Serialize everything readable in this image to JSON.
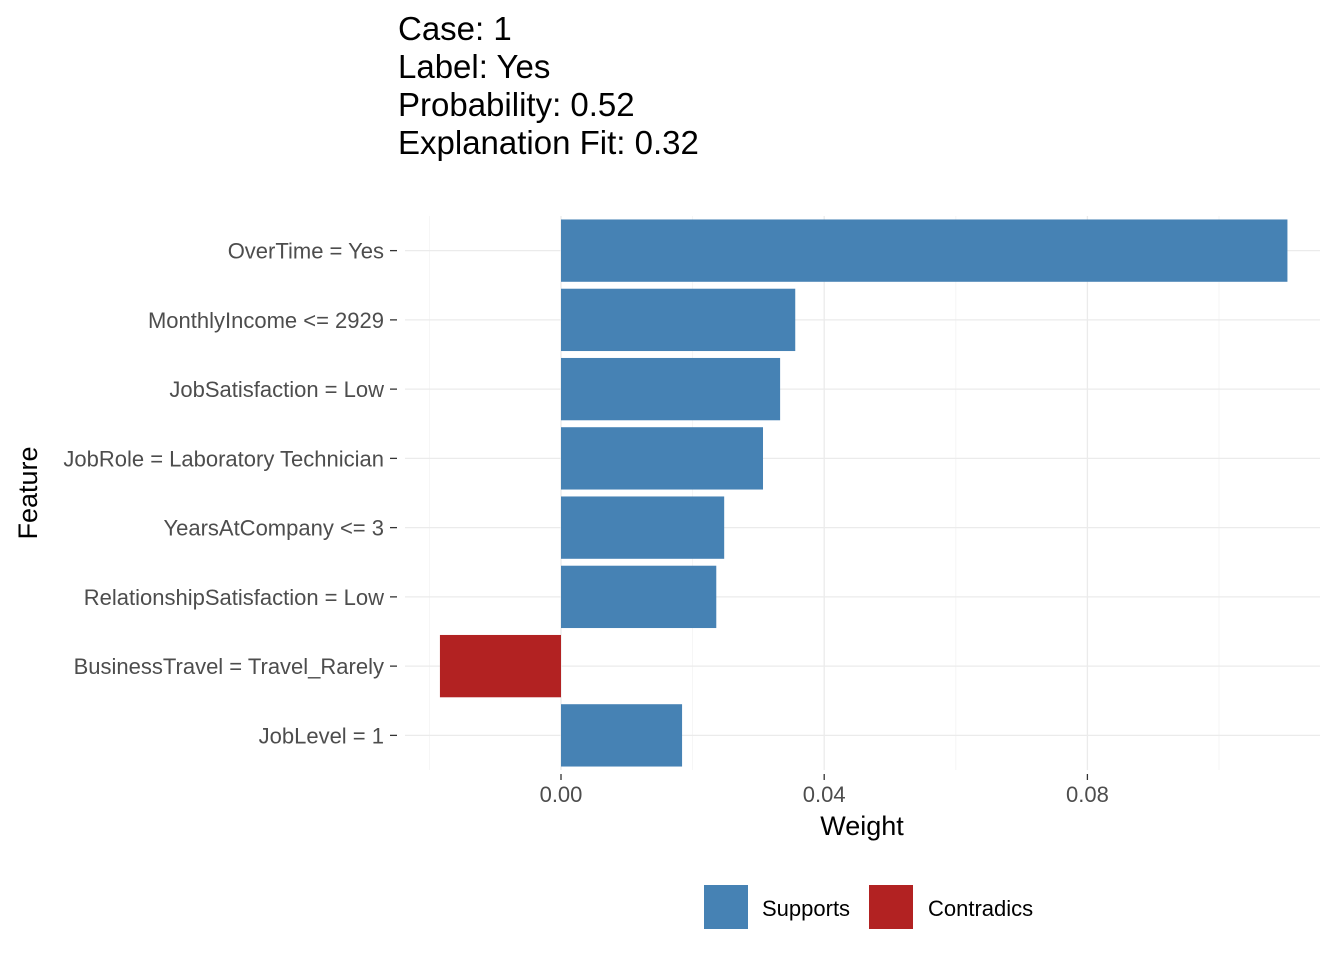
{
  "header": {
    "case_line": "Case: 1",
    "label_line": "Label: Yes",
    "probability_line": "Probability: 0.52",
    "fit_line": "Explanation Fit: 0.32"
  },
  "chart_data": {
    "type": "bar",
    "orientation": "horizontal",
    "xlabel": "Weight",
    "ylabel": "Feature",
    "xlim": [
      -0.02,
      0.111
    ],
    "x_ticks": [
      0.0,
      0.04,
      0.08
    ],
    "x_tick_labels": [
      "0.00",
      "0.04",
      "0.08"
    ],
    "grid": true,
    "legend_position": "bottom",
    "colors": {
      "Supports": "#4682b4",
      "Contradicts": "#b22222"
    },
    "legend": [
      {
        "key": "Supports",
        "label": "Supports"
      },
      {
        "key": "Contradicts",
        "label": "Contradics"
      }
    ],
    "categories": [
      "OverTime = Yes",
      "MonthlyIncome <= 2929",
      "JobSatisfaction = Low",
      "JobRole = Laboratory Technician",
      "YearsAtCompany <= 3",
      "RelationshipSatisfaction = Low",
      "BusinessTravel = Travel_Rarely",
      "JobLevel = 1"
    ],
    "values": [
      0.1104,
      0.0356,
      0.0333,
      0.0307,
      0.0248,
      0.0236,
      -0.0184,
      0.0184
    ],
    "groups": [
      "Supports",
      "Supports",
      "Supports",
      "Supports",
      "Supports",
      "Supports",
      "Contradicts",
      "Supports"
    ]
  }
}
